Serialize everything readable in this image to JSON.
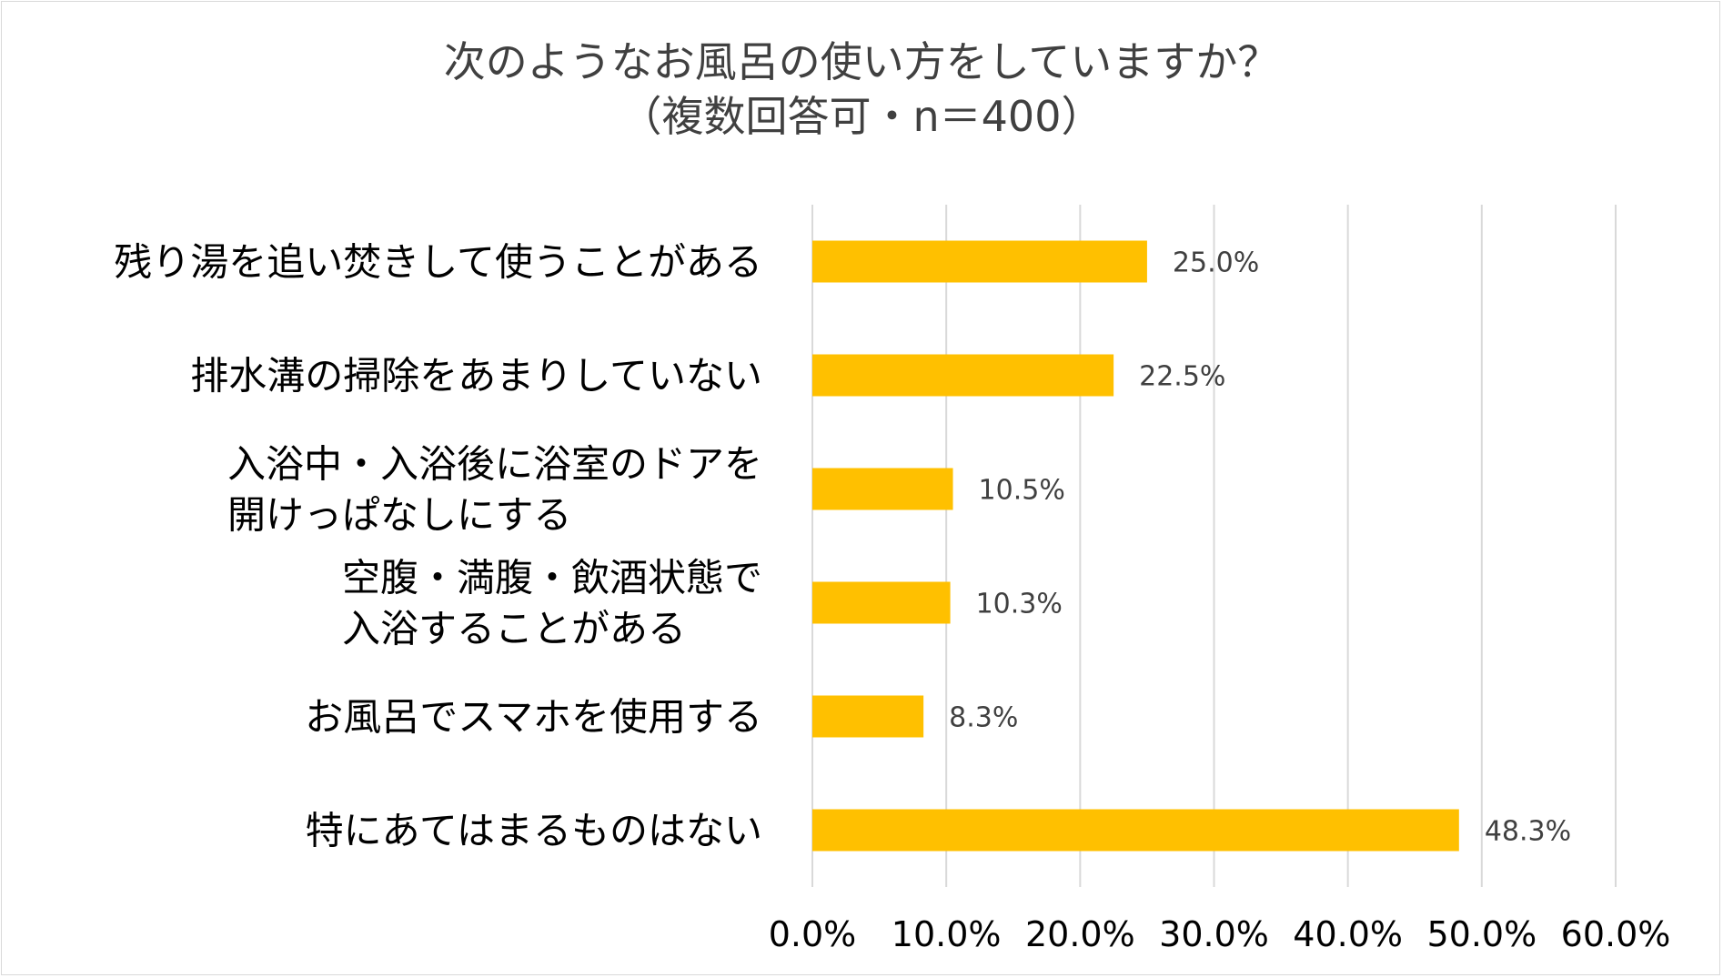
{
  "chart_data": {
    "type": "bar",
    "orientation": "horizontal",
    "title_lines": [
      "次のようなお風呂の使い方をしていますか？",
      "（複数回答可・n＝400）"
    ],
    "categories": [
      [
        "残り湯を追い焚きして使うことがある"
      ],
      [
        "排水溝の掃除をあまりしていない"
      ],
      [
        "入浴中・入浴後に浴室のドアを",
        "開けっぱなしにする"
      ],
      [
        "空腹・満腹・飲酒状態で",
        "入浴することがある"
      ],
      [
        "お風呂でスマホを使用する"
      ],
      [
        "特にあてはまるものはない"
      ]
    ],
    "values": [
      25.0,
      22.5,
      10.5,
      10.3,
      8.3,
      48.3
    ],
    "data_labels": [
      "25.0%",
      "22.5%",
      "10.5%",
      "10.3%",
      "8.3%",
      "48.3%"
    ],
    "xlim": [
      0,
      60
    ],
    "x_ticks": [
      0,
      10,
      20,
      30,
      40,
      50,
      60
    ],
    "x_tick_labels": [
      "0.0%",
      "10.0%",
      "20.0%",
      "30.0%",
      "40.0%",
      "50.0%",
      "60.0%"
    ],
    "grid": "vertical",
    "legend": "none",
    "colors": {
      "bar": "#FFC000",
      "grid": "#d9d9d9",
      "title": "#404040",
      "data_label": "#404040"
    }
  }
}
